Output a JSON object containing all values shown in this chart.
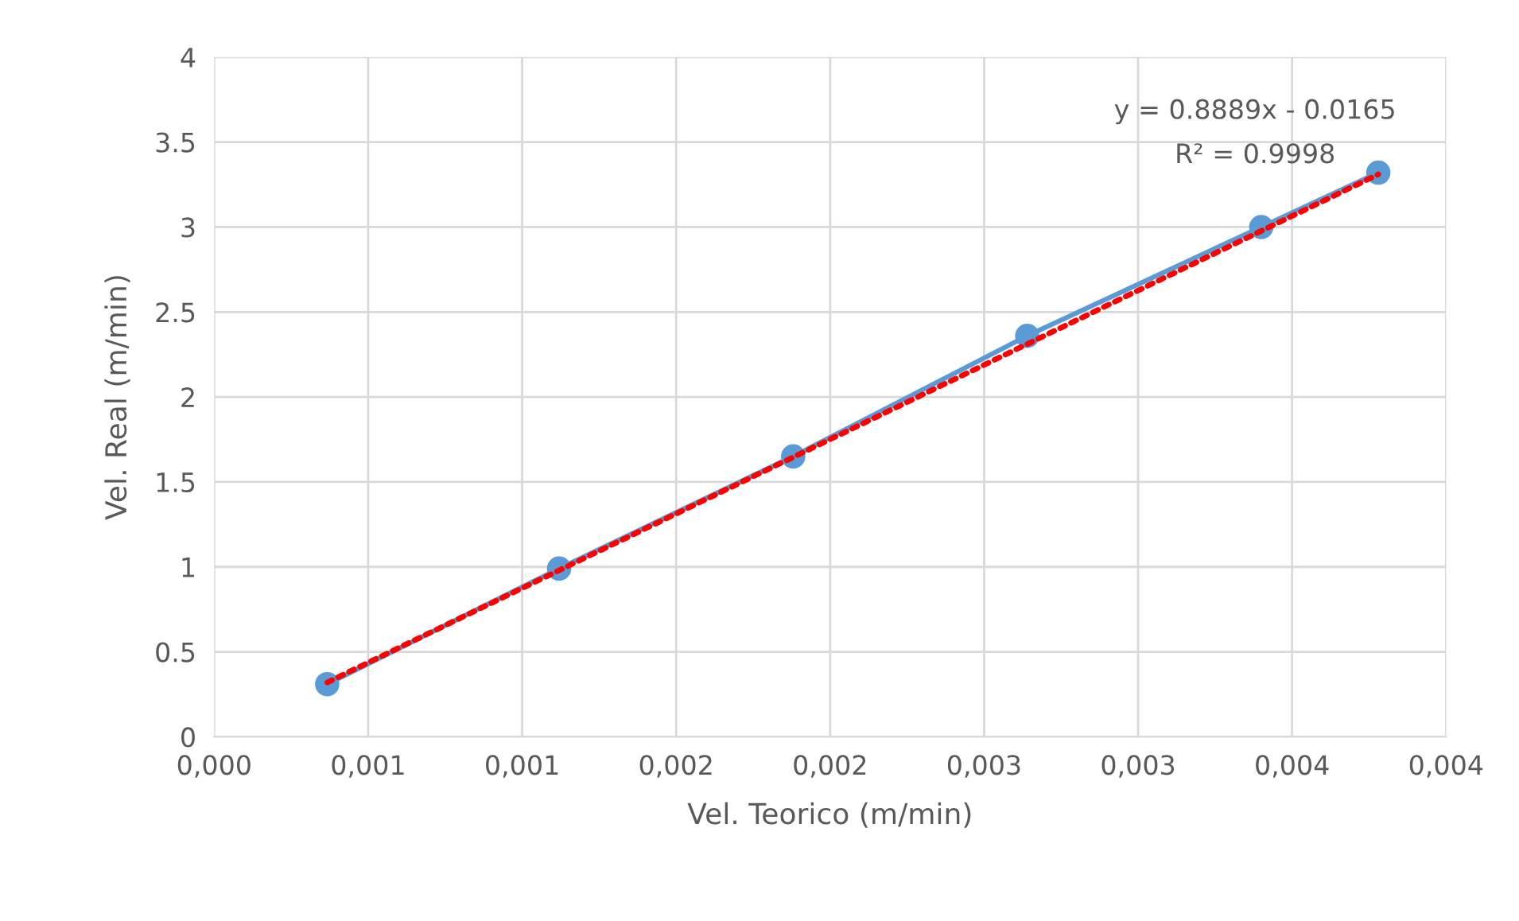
{
  "chart_data": {
    "type": "line",
    "xlabel": "Vel. Teorico (m/min)",
    "ylabel": "Vel. Real (m/min)",
    "x": [
      0.000367,
      0.00112,
      0.00188,
      0.00264,
      0.0034,
      0.00378
    ],
    "series": [
      {
        "color": "#5b9bd5",
        "values": [
          0.31,
          0.99,
          1.65,
          2.36,
          3.0,
          3.32
        ],
        "marker": "circle",
        "line_style": "solid"
      },
      {
        "type": "line",
        "color": "#ff0000",
        "x": [
          0.000367,
          0.00378
        ],
        "values": [
          0.32,
          3.31
        ],
        "marker": "none",
        "line_style": "dotted"
      }
    ],
    "xlim": [
      0,
      0.004
    ],
    "ylim": [
      0,
      4
    ],
    "xticks": [
      {
        "value": 0,
        "label": "0,000"
      },
      {
        "value": 0.0005,
        "label": "0,001"
      },
      {
        "value": 0.001,
        "label": "0,001"
      },
      {
        "value": 0.0015,
        "label": "0,002"
      },
      {
        "value": 0.002,
        "label": "0,002"
      },
      {
        "value": 0.0025,
        "label": "0,003"
      },
      {
        "value": 0.003,
        "label": "0,003"
      },
      {
        "value": 0.0035,
        "label": "0,004"
      },
      {
        "value": 0.004,
        "label": "0,004"
      }
    ],
    "yticks": [
      0,
      0.5,
      1,
      1.5,
      2,
      2.5,
      3,
      3.5,
      4
    ],
    "grid": true,
    "legend": false,
    "annotations": [
      "y = 0.8889x - 0.0165",
      "R² = 0.9998"
    ]
  }
}
